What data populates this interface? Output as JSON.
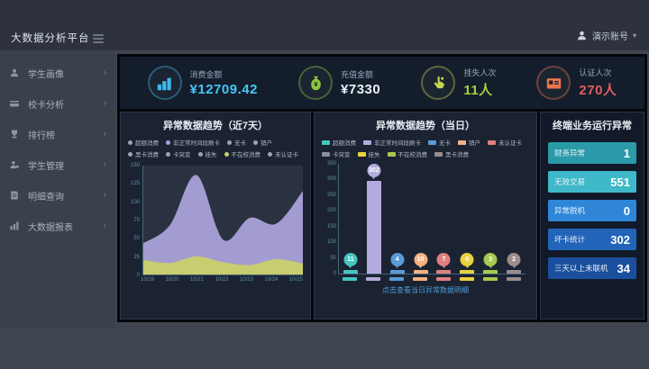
{
  "app": {
    "title": "大数据分析平台"
  },
  "user": {
    "name": "演示账号",
    "caret": "▾"
  },
  "sidebar": {
    "chevron": "›",
    "items": [
      {
        "key": "student-portrait",
        "label": "学生画像",
        "icon": "student-icon"
      },
      {
        "key": "card-analysis",
        "label": "校卡分析",
        "icon": "card-icon"
      },
      {
        "key": "rankings",
        "label": "排行榜",
        "icon": "trophy-icon"
      },
      {
        "key": "student-management",
        "label": "学生管理",
        "icon": "manage-icon"
      },
      {
        "key": "detail-query",
        "label": "明细查询",
        "icon": "query-icon"
      },
      {
        "key": "bigdata-report",
        "label": "大数据报表",
        "icon": "report-icon"
      }
    ]
  },
  "kpis": [
    {
      "key": "consume-amount",
      "label": "消费金额",
      "value": "¥12709.42",
      "color": "#3eb9ea",
      "value_color": "#45c8f5",
      "icon": "coins-icon"
    },
    {
      "key": "recharge-amount",
      "label": "充值金额",
      "value": "¥7330",
      "color": "#8bc63f",
      "value_color": "#e9f2f7",
      "icon": "moneybag-icon"
    },
    {
      "key": "loss-report-count",
      "label": "挂失人次",
      "value": "11人",
      "color": "#c3d54a",
      "value_color": "#a8cf3d",
      "icon": "report-loss-icon"
    },
    {
      "key": "auth-count",
      "label": "认证人次",
      "value": "270人",
      "color": "#e8764a",
      "value_color": "#e25d5d",
      "icon": "idcard-icon"
    }
  ],
  "chart_data": [
    {
      "type": "area",
      "title": "异常数据趋势（近7天）",
      "categories": [
        "10/19",
        "10/20",
        "10/21",
        "10/22",
        "10/23",
        "10/24",
        "10/25"
      ],
      "series": [
        {
          "name": "非正常时间段刷卡",
          "color": "#aaa2d8",
          "values": [
            43,
            68,
            137,
            48,
            78,
            70,
            115
          ]
        },
        {
          "name": "不在校消费",
          "color": "#c9d06a",
          "values": [
            20,
            16,
            25,
            17,
            13,
            21,
            15
          ]
        }
      ],
      "ylim": [
        0,
        150
      ],
      "yticks": [
        0,
        25,
        50,
        75,
        100,
        125,
        150
      ],
      "legend_position": "top",
      "grid": false,
      "legend": [
        {
          "label": "超额消费",
          "color": "#9aa5b1"
        },
        {
          "label": "非正常时间段刷卡",
          "color": "#aaa2d8"
        },
        {
          "label": "无卡",
          "color": "#9aa5b1"
        },
        {
          "label": "销户",
          "color": "#9aa5b1"
        },
        {
          "label": "黑卡消费",
          "color": "#9aa5b1"
        },
        {
          "label": "卡突变",
          "color": "#9aa5b1"
        },
        {
          "label": "挂失",
          "color": "#9aa5b1"
        },
        {
          "label": "不在校消费",
          "color": "#c9d06a"
        },
        {
          "label": "未认证卡",
          "color": "#9aa5b1"
        }
      ]
    },
    {
      "type": "bar",
      "title": "异常数据趋势（当日）",
      "caption": "点击查看当日异常数据明细",
      "categories": [
        "超额消费",
        "非正常时间段刷卡",
        "无卡",
        "销户",
        "未认证卡",
        "挂失",
        "不在校消费",
        "黑卡消费"
      ],
      "values": [
        11,
        302,
        4,
        10,
        7,
        6,
        3,
        2
      ],
      "colors": [
        "#45c5c0",
        "#b3abdd",
        "#5b9bd5",
        "#f5b183",
        "#e07f7f",
        "#e8d23f",
        "#a8c94f",
        "#9c8c8c"
      ],
      "ylim": [
        0,
        350
      ],
      "yticks": [
        0,
        50,
        100,
        150,
        200,
        250,
        300,
        350
      ],
      "legend_position": "top",
      "grid": false,
      "legend": [
        {
          "label": "超额消费",
          "color": "#45c5c0"
        },
        {
          "label": "非正常时间段刷卡",
          "color": "#b3abdd"
        },
        {
          "label": "无卡",
          "color": "#5b9bd5"
        },
        {
          "label": "销户",
          "color": "#f5b183"
        },
        {
          "label": "未认证卡",
          "color": "#e07f7f"
        },
        {
          "label": "卡突变",
          "color": "#8a8f99"
        },
        {
          "label": "挂失",
          "color": "#e8d23f"
        },
        {
          "label": "不在校消费",
          "color": "#a8c94f"
        },
        {
          "label": "黑卡消费",
          "color": "#9c8c8c"
        }
      ]
    }
  ],
  "terminal": {
    "title": "终端业务运行异常",
    "rows": [
      {
        "key": "finance-abnormal",
        "label": "财务异常",
        "value": "1",
        "color": "#2a9aa8"
      },
      {
        "key": "invalid-transaction",
        "label": "无效交易",
        "value": "551",
        "color": "#3fb9c9"
      },
      {
        "key": "abnormal-offline",
        "label": "异常脱机",
        "value": "0",
        "color": "#2f86d6"
      },
      {
        "key": "bad-card-count",
        "label": "坏卡统计",
        "value": "302",
        "color": "#2264b8"
      },
      {
        "key": "offline-3days",
        "label": "三天以上未联机",
        "value": "34",
        "color": "#1b4f9e"
      }
    ]
  },
  "colors": {
    "accent_teal": "#3fb9c9",
    "panel_bg": "#1b2332",
    "frame": "#05070a",
    "header_bg": "#2d323d"
  }
}
